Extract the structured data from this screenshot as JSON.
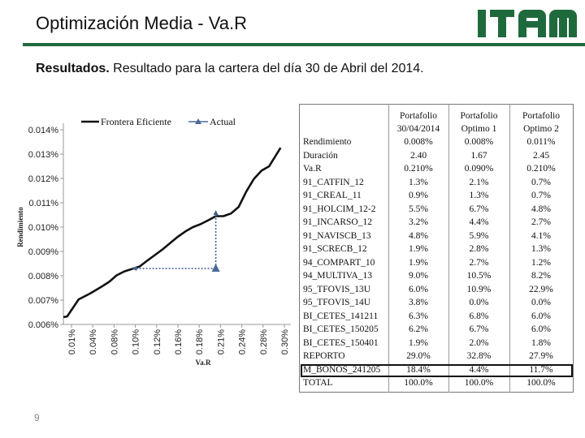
{
  "header": {
    "title": "Optimización Media - Va.R",
    "logo_text": "ITAM"
  },
  "subtitle": {
    "bold": "Resultados.",
    "text": " Resultado para la cartera del día 30 de Abril del 2014."
  },
  "page_number": "9",
  "chart_data": {
    "type": "line",
    "xlabel": "Va.R",
    "ylabel": "Rendimiento",
    "x_ticks": [
      "0.01%",
      "0.04%",
      "0.08%",
      "0.10%",
      "0.12%",
      "0.16%",
      "0.18%",
      "0.21%",
      "0.24%",
      "0.28%",
      "0.30%"
    ],
    "y_ticks": [
      "0.006%",
      "0.007%",
      "0.008%",
      "0.009%",
      "0.010%",
      "0.011%",
      "0.012%",
      "0.013%",
      "0.014%"
    ],
    "xlim": [
      0.01,
      0.3
    ],
    "ylim": [
      0.006,
      0.014
    ],
    "legend_position": "top",
    "series": [
      {
        "name": "Frontera Eficiente",
        "color": "#111111",
        "x": [
          0.01,
          0.015,
          0.03,
          0.045,
          0.06,
          0.07,
          0.08,
          0.09,
          0.1,
          0.11,
          0.12,
          0.13,
          0.14,
          0.15,
          0.16,
          0.17,
          0.18,
          0.19,
          0.2,
          0.21,
          0.22,
          0.23,
          0.24,
          0.25,
          0.26,
          0.27,
          0.28,
          0.295
        ],
        "y": [
          0.0063,
          0.00633,
          0.00703,
          0.00727,
          0.00755,
          0.00775,
          0.00802,
          0.00818,
          0.00828,
          0.00838,
          0.00862,
          0.00885,
          0.00908,
          0.00934,
          0.0096,
          0.00982,
          0.01,
          0.01012,
          0.01028,
          0.01045,
          0.01045,
          0.01056,
          0.01083,
          0.01146,
          0.01198,
          0.01232,
          0.0125,
          0.01326
        ]
      },
      {
        "name": "Actual",
        "color": "#4a6a9a",
        "x": [
          0.21
        ],
        "y": [
          0.0083
        ],
        "connector_from": {
          "x": 0.1,
          "y": 0.0083
        },
        "connector_to": {
          "x": 0.21,
          "y": 0.0107
        }
      }
    ]
  },
  "table": {
    "columns": [
      "",
      "Portafolio 30/04/2014",
      "Portafolio Optimo 1",
      "Portafolio Optimo 2"
    ],
    "rows": [
      [
        "Rendimiento",
        "0.008%",
        "0.008%",
        "0.011%"
      ],
      [
        "Duración",
        "2.40",
        "1.67",
        "2.45"
      ],
      [
        "Va.R",
        "0.210%",
        "0.090%",
        "0.210%"
      ],
      [
        "91_CATFIN_12",
        "1.3%",
        "2.1%",
        "0.7%"
      ],
      [
        "91_CREAL_11",
        "0.9%",
        "1.3%",
        "0.7%"
      ],
      [
        "91_HOLCIM_12-2",
        "5.5%",
        "6.7%",
        "4.8%"
      ],
      [
        "91_INCARSO_12",
        "3.2%",
        "4.4%",
        "2.7%"
      ],
      [
        "91_NAVISCB_13",
        "4.8%",
        "5.9%",
        "4.1%"
      ],
      [
        "91_SCRECB_12",
        "1.9%",
        "2.8%",
        "1.3%"
      ],
      [
        "94_COMPART_10",
        "1.9%",
        "2.7%",
        "1.2%"
      ],
      [
        "94_MULTIVA_13",
        "9.0%",
        "10.5%",
        "8.2%"
      ],
      [
        "95_TFOVIS_13U",
        "6.0%",
        "10.9%",
        "22.9%"
      ],
      [
        "95_TFOVIS_14U",
        "3.8%",
        "0.0%",
        "0.0%"
      ],
      [
        "BI_CETES_141211",
        "6.3%",
        "6.8%",
        "6.0%"
      ],
      [
        "BI_CETES_150205",
        "6.2%",
        "6.7%",
        "6.0%"
      ],
      [
        "BI_CETES_150401",
        "1.9%",
        "2.0%",
        "1.8%"
      ],
      [
        "REPORTO",
        "29.0%",
        "32.8%",
        "27.9%"
      ],
      [
        "M_BONOS_241205",
        "18.4%",
        "4.4%",
        "11.7%"
      ],
      [
        "TOTAL",
        "100.0%",
        "100.0%",
        "100.0%"
      ]
    ]
  },
  "colors": {
    "brand_green": "#1f6a3c",
    "frontier_line": "#111111",
    "actual_marker": "#4a6a9a"
  }
}
